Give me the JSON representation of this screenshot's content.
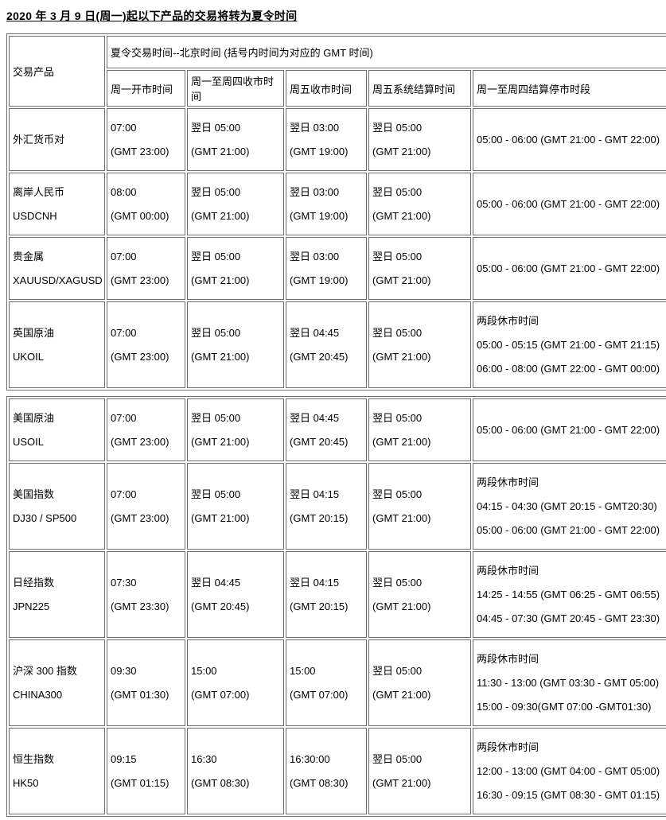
{
  "title": "2020 年 3 月 9 日(周一)起以下产品的交易将转为夏令时间",
  "table": {
    "corner_header": "交易产品",
    "group_header": "夏令交易时间--北京时间 (括号内时间为对应的 GMT 时间)",
    "columns": [
      "周一开市时间",
      "周一至周四收市时间",
      "周五收市时间",
      "周五系统结算时间",
      "周一至周四结算停市时段"
    ],
    "split_index": 4,
    "rows": [
      {
        "product": [
          "外汇货币对"
        ],
        "monday_open": [
          "07:00",
          "(GMT 23:00)"
        ],
        "mon_thu_close": [
          "翌日 05:00",
          "(GMT 21:00)"
        ],
        "friday_close": [
          "翌日 03:00",
          "(GMT 19:00)"
        ],
        "friday_settlement": [
          "翌日 05:00",
          "(GMT 21:00)"
        ],
        "breaks": [
          "05:00 - 06:00 (GMT 21:00 - GMT 22:00)"
        ]
      },
      {
        "product": [
          "离岸人民币",
          "USDCNH"
        ],
        "monday_open": [
          "08:00",
          "(GMT 00:00)"
        ],
        "mon_thu_close": [
          "翌日 05:00",
          "(GMT 21:00)"
        ],
        "friday_close": [
          "翌日 03:00",
          "(GMT 19:00)"
        ],
        "friday_settlement": [
          "翌日 05:00",
          "(GMT 21:00)"
        ],
        "breaks": [
          "05:00 - 06:00 (GMT 21:00 - GMT 22:00)"
        ]
      },
      {
        "product": [
          "贵金属",
          "XAUUSD/XAGUSD"
        ],
        "monday_open": [
          "07:00",
          "(GMT 23:00)"
        ],
        "mon_thu_close": [
          "翌日 05:00",
          "(GMT 21:00)"
        ],
        "friday_close": [
          "翌日 03:00",
          "(GMT 19:00)"
        ],
        "friday_settlement": [
          "翌日 05:00",
          "(GMT 21:00)"
        ],
        "breaks": [
          "05:00 - 06:00 (GMT 21:00 - GMT 22:00)"
        ]
      },
      {
        "product": [
          "英国原油",
          "UKOIL"
        ],
        "monday_open": [
          "07:00",
          "(GMT 23:00)"
        ],
        "mon_thu_close": [
          "翌日 05:00",
          "(GMT 21:00)"
        ],
        "friday_close": [
          "翌日 04:45",
          "(GMT 20:45)"
        ],
        "friday_settlement": [
          "翌日 05:00",
          "(GMT 21:00)"
        ],
        "breaks": [
          "两段休市时间",
          "05:00 - 05:15 (GMT 21:00 - GMT 21:15)",
          "06:00 - 08:00 (GMT 22:00 - GMT 00:00)"
        ]
      },
      {
        "product": [
          "美国原油",
          "USOIL"
        ],
        "monday_open": [
          "07:00",
          "(GMT 23:00)"
        ],
        "mon_thu_close": [
          "翌日 05:00",
          "(GMT 21:00)"
        ],
        "friday_close": [
          "翌日 04:45",
          "(GMT 20:45)"
        ],
        "friday_settlement": [
          "翌日 05:00",
          "(GMT 21:00)"
        ],
        "breaks": [
          "05:00 - 06:00 (GMT 21:00 - GMT 22:00)"
        ]
      },
      {
        "product": [
          "美国指数",
          "DJ30 / SP500"
        ],
        "monday_open": [
          "07:00",
          "(GMT 23:00)"
        ],
        "mon_thu_close": [
          "翌日 05:00",
          "(GMT 21:00)"
        ],
        "friday_close": [
          "翌日 04:15",
          "(GMT 20:15)"
        ],
        "friday_settlement": [
          "翌日 05:00",
          "(GMT 21:00)"
        ],
        "breaks": [
          "两段休市时间",
          "04:15 - 04:30 (GMT 20:15 - GMT20:30)",
          "05:00 - 06:00 (GMT 21:00 - GMT 22:00)"
        ]
      },
      {
        "product": [
          "日经指数",
          "JPN225"
        ],
        "monday_open": [
          "07:30",
          "(GMT 23:30)"
        ],
        "mon_thu_close": [
          "翌日 04:45",
          "(GMT 20:45)"
        ],
        "friday_close": [
          "翌日 04:15",
          "(GMT 20:15)"
        ],
        "friday_settlement": [
          "翌日 05:00",
          "(GMT 21:00)"
        ],
        "breaks": [
          "两段休市时间",
          "14:25 - 14:55 (GMT 06:25 - GMT 06:55)",
          "04:45 - 07:30 (GMT 20:45 - GMT 23:30)"
        ]
      },
      {
        "product": [
          "沪深 300 指数",
          "CHINA300"
        ],
        "monday_open": [
          "09:30",
          "(GMT 01:30)"
        ],
        "mon_thu_close": [
          "15:00",
          "(GMT 07:00)"
        ],
        "friday_close": [
          "15:00",
          "(GMT 07:00)"
        ],
        "friday_settlement": [
          "翌日 05:00",
          "(GMT 21:00)"
        ],
        "breaks": [
          "两段休市时间",
          "11:30 - 13:00 (GMT 03:30 - GMT 05:00)",
          "15:00 - 09:30(GMT 07:00 -GMT01:30)"
        ]
      },
      {
        "product": [
          "恒生指数",
          "HK50"
        ],
        "monday_open": [
          "09:15",
          "(GMT 01:15)"
        ],
        "mon_thu_close": [
          "16:30",
          "(GMT 08:30)"
        ],
        "friday_close": [
          "16:30:00",
          "(GMT 08:30)"
        ],
        "friday_settlement": [
          "翌日 05:00",
          "(GMT 21:00)"
        ],
        "breaks": [
          "两段休市时间",
          "12:00 - 13:00 (GMT 04:00 - GMT 05:00)",
          "16:30 - 09:15 (GMT 08:30 - GMT 01:15)"
        ]
      }
    ]
  }
}
